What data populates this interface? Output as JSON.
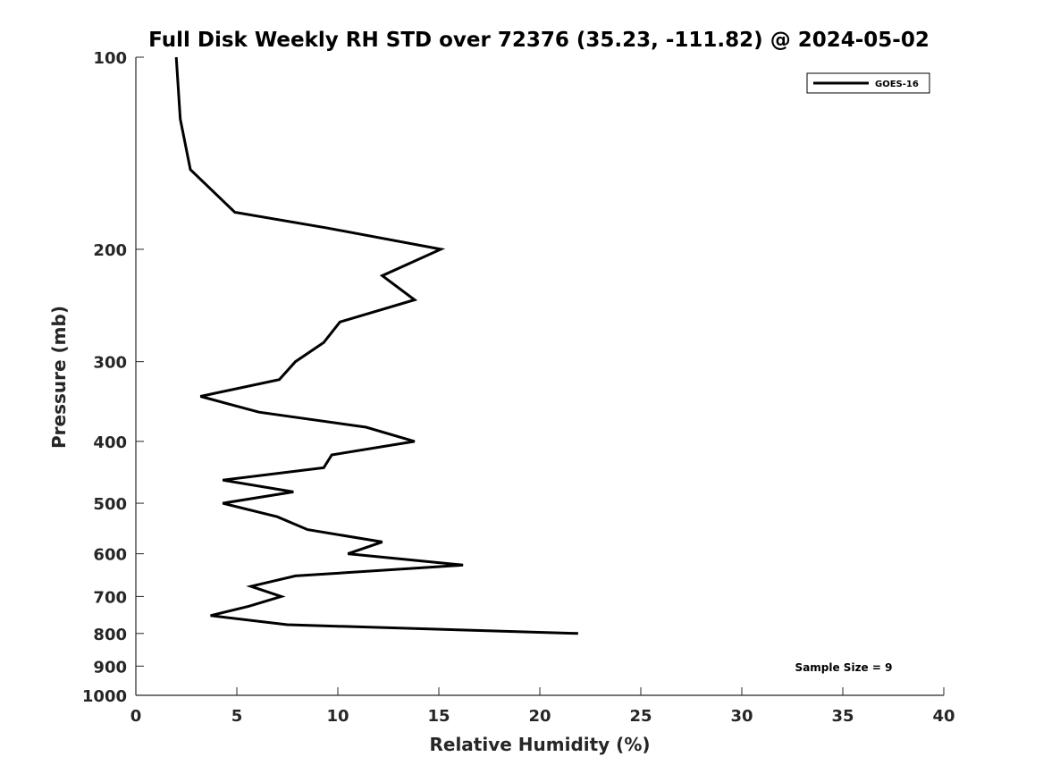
{
  "chart_data": {
    "type": "line",
    "title": "Full Disk Weekly RH STD over 72376 (35.23, -111.82) @ 2024-05-02",
    "xlabel": "Relative Humidity (%)",
    "ylabel": "Pressure (mb)",
    "xlim": [
      0,
      40
    ],
    "ylim": [
      100,
      1000
    ],
    "y_scale": "log",
    "y_reversed": true,
    "grid": false,
    "legend_position": "top-right",
    "xticks": [
      0,
      5,
      10,
      15,
      20,
      25,
      30,
      35,
      40
    ],
    "yticks": [
      100,
      200,
      300,
      400,
      500,
      600,
      700,
      800,
      900,
      1000
    ],
    "series": [
      {
        "name": "GOES-16",
        "color": "#000000",
        "x": [
          2.0,
          2.2,
          2.7,
          4.9,
          9.4,
          15.1,
          12.2,
          13.8,
          10.1,
          9.3,
          7.9,
          7.1,
          3.2,
          6.1,
          11.4,
          13.8,
          9.7,
          9.3,
          4.3,
          7.8,
          4.3,
          7.0,
          8.5,
          12.2,
          10.5,
          16.2,
          7.9,
          5.7,
          7.2,
          5.6,
          3.7,
          7.5,
          21.9
        ],
        "y": [
          100,
          125,
          150,
          175,
          185,
          200,
          220,
          240,
          260,
          280,
          300,
          320,
          340,
          360,
          380,
          400,
          420,
          440,
          460,
          480,
          500,
          525,
          550,
          575,
          600,
          625,
          650,
          675,
          700,
          725,
          750,
          775,
          800
        ]
      }
    ],
    "annotations": [
      "Sample Size = 9"
    ]
  }
}
